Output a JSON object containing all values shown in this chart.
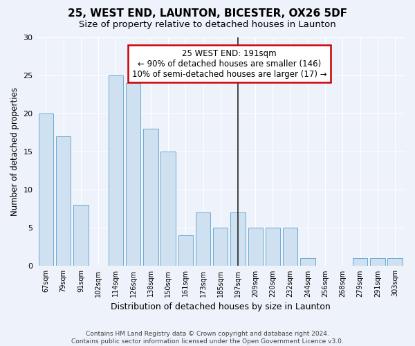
{
  "title": "25, WEST END, LAUNTON, BICESTER, OX26 5DF",
  "subtitle": "Size of property relative to detached houses in Launton",
  "xlabel": "Distribution of detached houses by size in Launton",
  "ylabel": "Number of detached properties",
  "footnote": "Contains HM Land Registry data © Crown copyright and database right 2024.\nContains public sector information licensed under the Open Government Licence v3.0.",
  "categories": [
    "67sqm",
    "79sqm",
    "91sqm",
    "102sqm",
    "114sqm",
    "126sqm",
    "138sqm",
    "150sqm",
    "161sqm",
    "173sqm",
    "185sqm",
    "197sqm",
    "209sqm",
    "220sqm",
    "232sqm",
    "244sqm",
    "256sqm",
    "268sqm",
    "279sqm",
    "291sqm",
    "303sqm"
  ],
  "values": [
    20,
    17,
    8,
    0,
    25,
    24,
    18,
    15,
    4,
    7,
    5,
    7,
    5,
    5,
    5,
    1,
    0,
    0,
    1,
    1,
    1
  ],
  "bar_color": "#cfe0f0",
  "bar_edge_color": "#6aaad4",
  "highlight_index": 11,
  "highlight_line_color": "#222222",
  "annotation_box_color": "#cc0000",
  "annotation_text": "25 WEST END: 191sqm\n← 90% of detached houses are smaller (146)\n10% of semi-detached houses are larger (17) →",
  "annotation_fontsize": 8.5,
  "ylim": [
    0,
    30
  ],
  "yticks": [
    0,
    5,
    10,
    15,
    20,
    25,
    30
  ],
  "bg_color": "#eef2fa",
  "grid_color": "#ffffff",
  "title_fontsize": 11,
  "subtitle_fontsize": 9.5,
  "xlabel_fontsize": 9,
  "ylabel_fontsize": 8.5,
  "footnote_fontsize": 6.5
}
